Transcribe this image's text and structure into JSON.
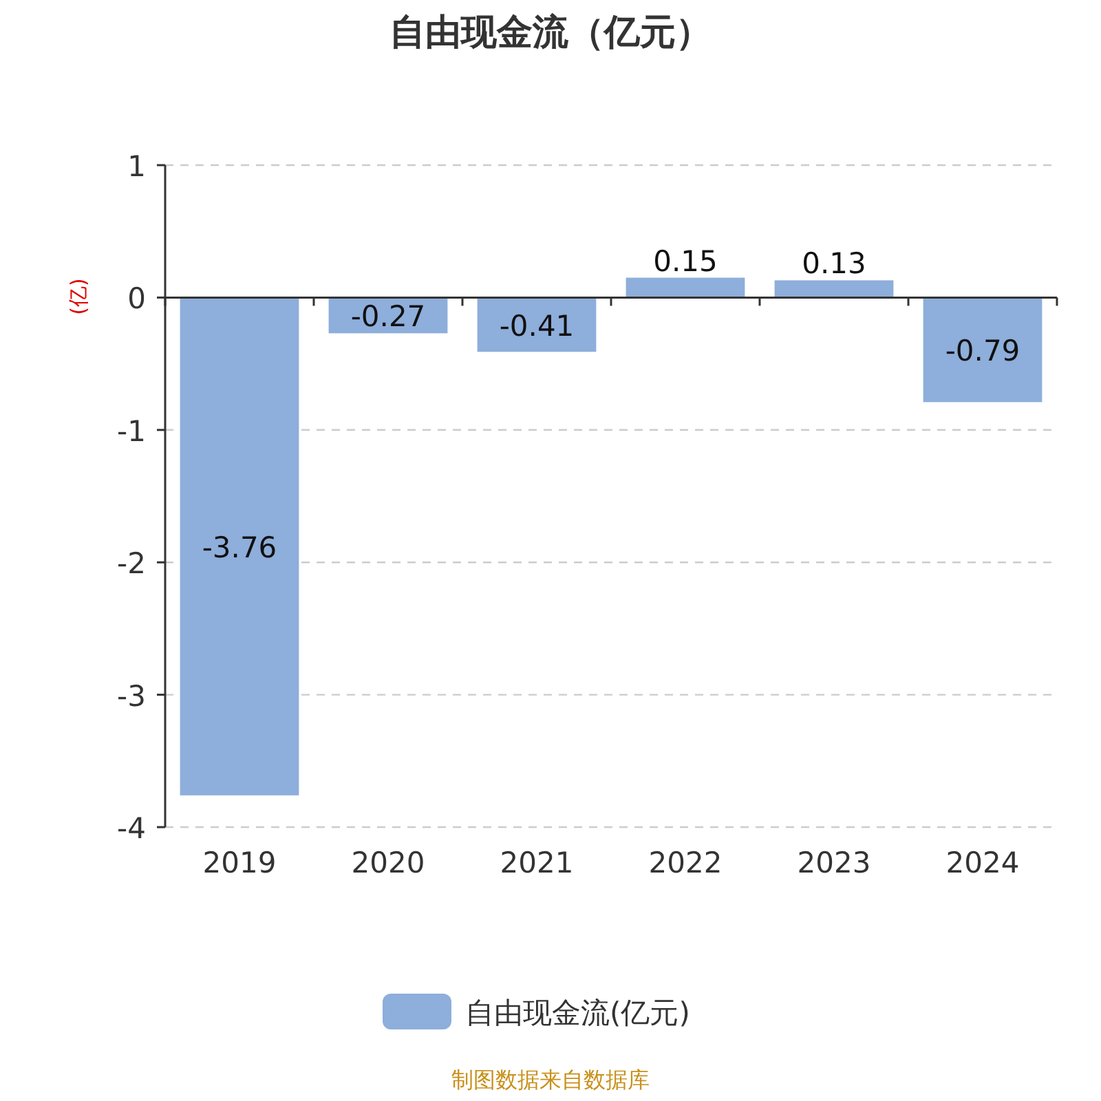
{
  "chart_data": {
    "type": "bar",
    "title": "自由现金流（亿元）",
    "ylabel": "(亿)",
    "categories": [
      "2019",
      "2020",
      "2021",
      "2022",
      "2023",
      "2024"
    ],
    "series": [
      {
        "name": "自由现金流(亿元)",
        "color": "#8eaedb",
        "values": [
          -3.76,
          -0.27,
          -0.41,
          0.15,
          0.13,
          -0.79
        ]
      }
    ],
    "ylim": [
      -4,
      1
    ],
    "yticks": [
      -4,
      -3,
      -2,
      -1,
      0,
      1
    ],
    "grid": "y",
    "legend": "bottom",
    "data_labels": true,
    "annotations": [
      "制图数据来自数据库"
    ]
  }
}
